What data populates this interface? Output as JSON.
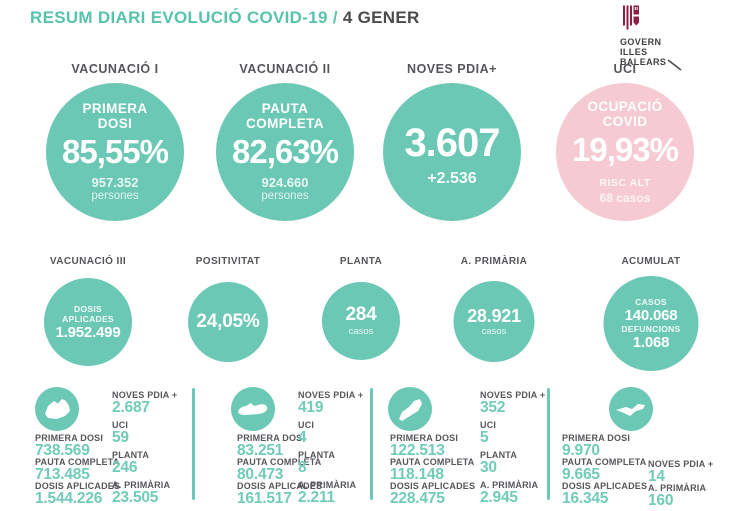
{
  "title": {
    "main": "RESUM DIARI EVOLUCIÓ COVID-19 /",
    "date": "4 GENER"
  },
  "logo": {
    "line1": "GOVERN",
    "line2": "ILLES",
    "line3": "BALEARS"
  },
  "colors": {
    "teal": "#6ac8b4",
    "pink": "#f6cad2",
    "title_teal": "#58c3ad",
    "label_gray": "#55565a",
    "value_teal": "#70ccb8",
    "logo_maroon": "#8e2044"
  },
  "row1": [
    {
      "label": "VACUNACIÓ I",
      "heading1": "PRIMERA",
      "heading2": "DOSI",
      "value": "85,55%",
      "sub1": "957.352",
      "sub2": "persones",
      "variant": "teal",
      "big": false
    },
    {
      "label": "VACUNACIÓ II",
      "heading1": "PAUTA",
      "heading2": "COMPLETA",
      "value": "82,63%",
      "sub1": "924.660",
      "sub2": "persones",
      "variant": "teal",
      "big": false
    },
    {
      "label": "NOVES PDIA+",
      "heading1": "",
      "heading2": "",
      "value": "3.607",
      "sub1": "+2.536",
      "sub2": "",
      "variant": "teal",
      "big": true
    },
    {
      "label": "UCI",
      "heading1": "OCUPACIÓ",
      "heading2": "COVID",
      "value": "19,93%",
      "sub1": "RISC ALT",
      "sub2": "68 casos",
      "variant": "pink",
      "big": false
    }
  ],
  "row2": [
    {
      "label": "VACUNACIÓ III",
      "lines": [
        {
          "text": "DOSIS",
          "size": "sm"
        },
        {
          "text": "APLICADES",
          "size": "sm"
        },
        {
          "text": "1.952.499",
          "size": "md"
        }
      ]
    },
    {
      "label": "POSITIVITAT",
      "lines": [
        {
          "text": "24,05%",
          "size": "lg"
        }
      ]
    },
    {
      "label": "PLANTA",
      "lines": [
        {
          "text": "284",
          "size": "lg"
        },
        {
          "text": "casos",
          "size": "xs"
        }
      ]
    },
    {
      "label": "A. PRIMÀRIA",
      "lines": [
        {
          "text": "28.921",
          "size": "md2"
        },
        {
          "text": "casos",
          "size": "xs"
        }
      ]
    },
    {
      "label": "ACUMULAT",
      "lines": [
        {
          "text": "CASOS",
          "size": "sm"
        },
        {
          "text": "140.068",
          "size": "md"
        },
        {
          "text": "DEFUNCIONS",
          "size": "sm"
        },
        {
          "text": "1.068",
          "size": "md"
        }
      ]
    }
  ],
  "islands": [
    {
      "name": "mallorca",
      "icon": "mallorca-island-icon",
      "left": [
        {
          "label": "PRIMERA DOSI",
          "value": "738.569"
        },
        {
          "label": "PAUTA COMPLETA",
          "value": "713.485"
        },
        {
          "label": "DOSIS APLICADES",
          "value": "1.544.226"
        }
      ],
      "right": [
        {
          "label": "NOVES PDIA +",
          "value": "2.687"
        },
        {
          "label": "UCI",
          "value": "59"
        },
        {
          "label": "PLANTA",
          "value": "246"
        },
        {
          "label": "A. PRIMÀRIA",
          "value": "23.505"
        }
      ]
    },
    {
      "name": "menorca",
      "icon": "menorca-island-icon",
      "left": [
        {
          "label": "PRIMERA DOSI",
          "value": "83.251"
        },
        {
          "label": "PAUTA COMPLETA",
          "value": "80.473"
        },
        {
          "label": "DOSIS APLICADES",
          "value": "161.517"
        }
      ],
      "right": [
        {
          "label": "NOVES PDIA +",
          "value": "419"
        },
        {
          "label": "UCI",
          "value": "4"
        },
        {
          "label": "PLANTA",
          "value": "8"
        },
        {
          "label": "A. PRIMÀRIA",
          "value": "2.211"
        }
      ]
    },
    {
      "name": "eivissa",
      "icon": "eivissa-island-icon",
      "left": [
        {
          "label": "PRIMERA DOSI",
          "value": "122.513"
        },
        {
          "label": "PAUTA COMPLETA",
          "value": "118.148"
        },
        {
          "label": "DOSIS APLICADES",
          "value": "228.475"
        }
      ],
      "right": [
        {
          "label": "NOVES PDIA +",
          "value": "352"
        },
        {
          "label": "UCI",
          "value": "5"
        },
        {
          "label": "PLANTA",
          "value": "30"
        },
        {
          "label": "A. PRIMÀRIA",
          "value": "2.945"
        }
      ]
    },
    {
      "name": "formentera",
      "icon": "formentera-island-icon",
      "left": [
        {
          "label": "PRIMERA DOSI",
          "value": "9.970"
        },
        {
          "label": "PAUTA COMPLETA",
          "value": "9.665"
        },
        {
          "label": "DOSIS APLICADES",
          "value": "16.345"
        }
      ],
      "right": [
        {
          "label": "NOVES PDIA +",
          "value": "14"
        },
        {
          "label": "A. PRIMÀRIA",
          "value": "160"
        }
      ]
    }
  ]
}
